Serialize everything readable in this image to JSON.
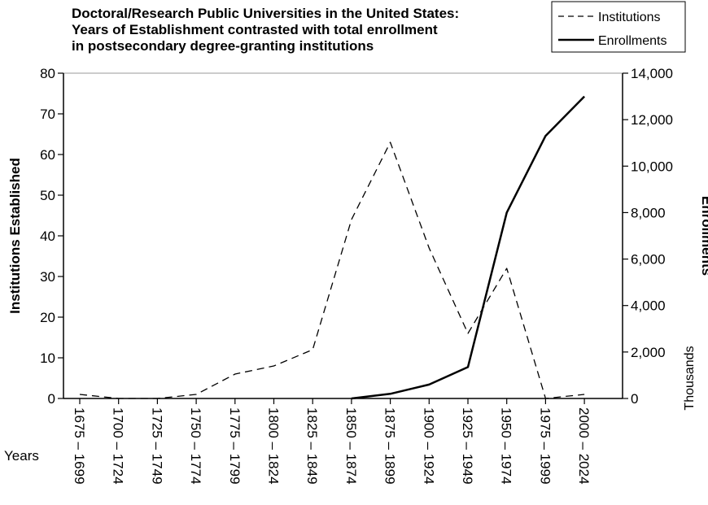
{
  "chart_data": {
    "type": "line",
    "title_lines": [
      "Doctoral/Research Public Universities in the United States:",
      "Years of Establishment contrasted with total enrollment",
      "in postsecondary degree-granting institutions"
    ],
    "categories": [
      "1675 – 1699",
      "1700 – 1724",
      "1725 – 1749",
      "1750 – 1774",
      "1775 – 1799",
      "1800 – 1824",
      "1825 – 1849",
      "1850 – 1874",
      "1875 – 1899",
      "1900 – 1924",
      "1925 – 1949",
      "1950 – 1974",
      "1975 – 1999",
      "2000 – 2024"
    ],
    "xlabel": "Years",
    "ylabel_left": "Institutions Established",
    "ylabel_right": "Enrollments",
    "right_unit_label": "Thousands",
    "ylim_left": [
      0,
      80
    ],
    "yticks_left": [
      0,
      10,
      20,
      30,
      40,
      50,
      60,
      70,
      80
    ],
    "ylim_right": [
      0,
      14000
    ],
    "yticks_right": [
      "0",
      "2,000",
      "4,000",
      "6,000",
      "8,000",
      "10,000",
      "12,000",
      "14,000"
    ],
    "grid": false,
    "legend_position": "top-right",
    "series": [
      {
        "name": "Institutions",
        "axis": "left",
        "style": "dashed",
        "values": [
          1,
          0,
          0,
          1,
          6,
          8,
          12,
          44,
          63,
          37,
          16,
          32,
          0,
          1
        ]
      },
      {
        "name": "Enrollments",
        "axis": "right",
        "style": "solid",
        "values": [
          0,
          0,
          0,
          0,
          0,
          0,
          0,
          0,
          200,
          600,
          1350,
          8000,
          11300,
          13000
        ]
      }
    ]
  }
}
